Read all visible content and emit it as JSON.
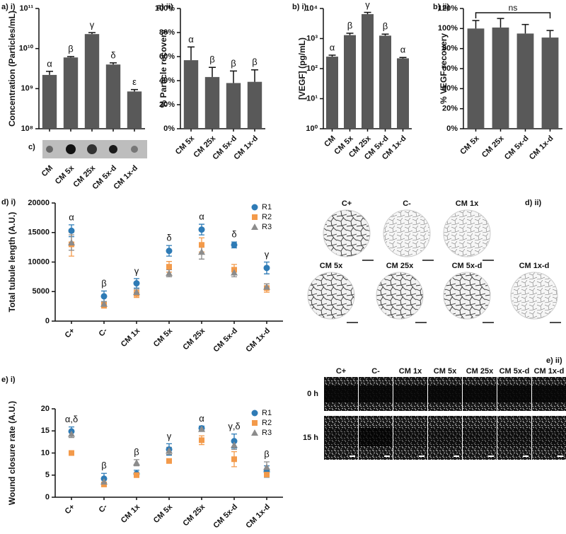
{
  "chart_data": [
    {
      "type": "bar",
      "title": "a) i)",
      "ylabel": "Concentration (Particles/mL)",
      "log": true,
      "color": "#595959",
      "categories": [
        "CM",
        "CM 5x",
        "CM 25x",
        "CM 5x-d",
        "CM 1x-d"
      ],
      "values": [
        2200000000,
        6000000000,
        23000000000,
        4000000000,
        850000000
      ],
      "errors": [
        500000000,
        300000000,
        2000000000,
        400000000,
        100000000
      ],
      "annotations": [
        "α",
        "β",
        "γ",
        "δ",
        "ε"
      ],
      "ylim": [
        100000000,
        100000000000
      ],
      "yticks": [
        {
          "value": 100000000,
          "label": "10⁸"
        },
        {
          "value": 1000000000,
          "label": "10⁹"
        },
        {
          "value": 10000000000,
          "label": "10¹⁰"
        },
        {
          "value": 100000000000,
          "label": "10¹¹"
        }
      ]
    },
    {
      "type": "bar",
      "title": "a) ii)",
      "ylabel": "% Particle recovery",
      "log": false,
      "color": "#595959",
      "categories": [
        "CM 5x",
        "CM 25x",
        "CM 5x-d",
        "CM 1x-d"
      ],
      "values": [
        57,
        43,
        38,
        39
      ],
      "errors": [
        11,
        8,
        10,
        10
      ],
      "annotations": [
        "α",
        "β",
        "β",
        "β"
      ],
      "ylim": [
        0,
        100
      ],
      "yticks": [
        {
          "value": 0,
          "label": "0%"
        },
        {
          "value": 20,
          "label": "20%"
        },
        {
          "value": 40,
          "label": "40%"
        },
        {
          "value": 60,
          "label": "60%"
        },
        {
          "value": 80,
          "label": "80%"
        },
        {
          "value": 100,
          "label": "100%"
        }
      ]
    },
    {
      "type": "bar",
      "title": "b) i)",
      "ylabel": "[VEGF] (pg/mL)",
      "log": true,
      "color": "#595959",
      "categories": [
        "CM",
        "CM 5x",
        "CM 25x",
        "CM 5x-d",
        "CM 1x-d"
      ],
      "values": [
        250,
        1300,
        6500,
        1250,
        220
      ],
      "errors": [
        30,
        200,
        900,
        150,
        15
      ],
      "annotations": [
        "α",
        "β",
        "γ",
        "β",
        "α"
      ],
      "ylim": [
        1,
        10000
      ],
      "yticks": [
        {
          "value": 1,
          "label": "10⁰"
        },
        {
          "value": 10,
          "label": "10¹"
        },
        {
          "value": 100,
          "label": "10²"
        },
        {
          "value": 1000,
          "label": "10³"
        },
        {
          "value": 10000,
          "label": "10⁴"
        }
      ]
    },
    {
      "type": "bar",
      "title": "b) ii)",
      "ylabel": "% VEGF recovery",
      "log": false,
      "color": "#595959",
      "categories": [
        "CM 5x",
        "CM 25x",
        "CM 5x-d",
        "CM 1x-d"
      ],
      "values": [
        100,
        101,
        95,
        91
      ],
      "errors": [
        8,
        9,
        9,
        7
      ],
      "significance": "ns",
      "ylim": [
        0,
        120
      ],
      "yticks": [
        {
          "value": 0,
          "label": "0%"
        },
        {
          "value": 20,
          "label": "20%"
        },
        {
          "value": 40,
          "label": "40%"
        },
        {
          "value": 60,
          "label": "60%"
        },
        {
          "value": 80,
          "label": "80%"
        },
        {
          "value": 100,
          "label": "100%"
        },
        {
          "value": 120,
          "label": "120%"
        }
      ]
    },
    {
      "type": "scatter",
      "title": "d) i)",
      "ylabel": "Total tubule length (A.U.)",
      "legend": "upper right",
      "categories": [
        "C+",
        "C-",
        "CM 1x",
        "CM 5x",
        "CM 25x",
        "CM 5x-d",
        "CM 1x-d"
      ],
      "series": [
        {
          "name": "R1",
          "color": "#2e7bb6",
          "marker": "circle",
          "values": [
            15300,
            4200,
            6400,
            11900,
            15500,
            12900,
            9000
          ],
          "errors": [
            1000,
            900,
            800,
            900,
            900,
            500,
            1000
          ]
        },
        {
          "name": "R2",
          "color": "#f39a4a",
          "marker": "square",
          "values": [
            13000,
            2700,
            4600,
            9200,
            12900,
            8700,
            5600
          ],
          "errors": [
            2000,
            500,
            600,
            900,
            1200,
            900,
            700
          ]
        },
        {
          "name": "R3",
          "color": "#8c8c8c",
          "marker": "triangle",
          "values": [
            13300,
            2900,
            4900,
            8100,
            11700,
            8200,
            5800
          ],
          "errors": [
            1300,
            400,
            500,
            600,
            1200,
            700,
            500
          ]
        }
      ],
      "annotations": [
        "α",
        "β",
        "γ",
        "δ",
        "α",
        "δ",
        "γ"
      ],
      "ylim": [
        0,
        20000
      ],
      "yticks": [
        0,
        5000,
        10000,
        15000,
        20000
      ]
    },
    {
      "type": "scatter",
      "title": "e) i)",
      "ylabel": "Wound closure rate (A.U.)",
      "legend": "upper right",
      "categories": [
        "C+",
        "C-",
        "CM 1x",
        "CM 5x",
        "CM 25x",
        "CM 5x-d",
        "CM 1x-d"
      ],
      "series": [
        {
          "name": "R1",
          "color": "#2e7bb6",
          "marker": "circle",
          "values": [
            14.9,
            4.2,
            5.3,
            10.8,
            15.6,
            12.7,
            5.8
          ],
          "errors": [
            1,
            1.2,
            0.8,
            1.3,
            0.5,
            1.6,
            1.3
          ]
        },
        {
          "name": "R2",
          "color": "#f39a4a",
          "marker": "square",
          "values": [
            10,
            2.9,
            5,
            8.2,
            12.9,
            8.6,
            5.1
          ],
          "errors": [
            0.3,
            0.5,
            0.5,
            0.3,
            1,
            1.7,
            0.5
          ]
        },
        {
          "name": "R3",
          "color": "#8c8c8c",
          "marker": "triangle",
          "values": [
            14.3,
            3.5,
            7.8,
            10.5,
            15.4,
            11.8,
            6.8
          ],
          "errors": [
            0.8,
            0.8,
            0.7,
            0.8,
            0.4,
            1,
            1.2
          ]
        }
      ],
      "annotations": [
        "α,δ",
        "β",
        "β",
        "γ",
        "α",
        "γ,δ",
        "β"
      ],
      "ylim": [
        0,
        20
      ],
      "yticks": [
        0,
        5,
        10,
        15,
        20
      ]
    }
  ],
  "image_panels": {
    "blot": {
      "label": "c)"
    },
    "tubes": {
      "label": "d) ii)",
      "captions": [
        "C+",
        "C-",
        "CM 1x",
        "CM 5x",
        "CM 25x",
        "CM 5x-d",
        "CM 1x-d"
      ]
    },
    "wound": {
      "label": "e) ii)",
      "columns": [
        "C+",
        "C-",
        "CM 1x",
        "CM 5x",
        "CM 25x",
        "CM 5x-d",
        "CM 1x-d"
      ],
      "rows": [
        "0 h",
        "15 h"
      ]
    }
  }
}
